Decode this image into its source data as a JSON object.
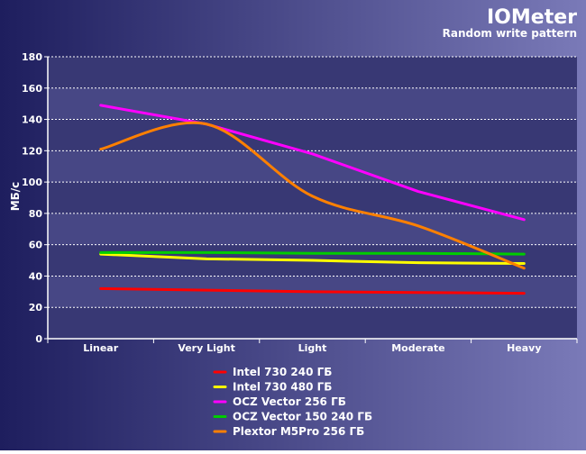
{
  "title": "IOMeter",
  "subtitle": "Random write pattern",
  "chart_data": {
    "type": "line",
    "title": "IOMeter",
    "subtitle": "Random write pattern",
    "xlabel": "",
    "ylabel": "МБ/с",
    "categories": [
      "Linear",
      "Very Light",
      "Light",
      "Moderate",
      "Heavy"
    ],
    "ylim": [
      0,
      180
    ],
    "yticks": [
      0,
      20,
      40,
      60,
      80,
      100,
      120,
      140,
      160,
      180
    ],
    "grid": true,
    "legend": "bottom-center",
    "series": [
      {
        "name": "Intel 730 240 ГБ",
        "color": "#ff0000",
        "values": [
          32,
          31,
          30,
          29.5,
          29
        ]
      },
      {
        "name": "Intel 730 480 ГБ",
        "color": "#ffff00",
        "values": [
          54,
          51,
          50,
          48.5,
          48
        ]
      },
      {
        "name": "OCZ Vector 256 ГБ",
        "color": "#ff00ff",
        "values": [
          149,
          137,
          118,
          94,
          76
        ]
      },
      {
        "name": "OCZ Vector 150 240 ГБ",
        "color": "#00cc00",
        "values": [
          55,
          55,
          54.5,
          54.5,
          54
        ]
      },
      {
        "name": "Plextor M5Pro 256 ГБ",
        "color": "#ff8000",
        "values": [
          121,
          137,
          91,
          72,
          45
        ],
        "smooth": true
      }
    ]
  },
  "colors": {
    "bg_left": "#1e1e5e",
    "bg_right": "#7a7ab8",
    "plot_band_dark": "#383874",
    "plot_band_light": "#474785"
  }
}
